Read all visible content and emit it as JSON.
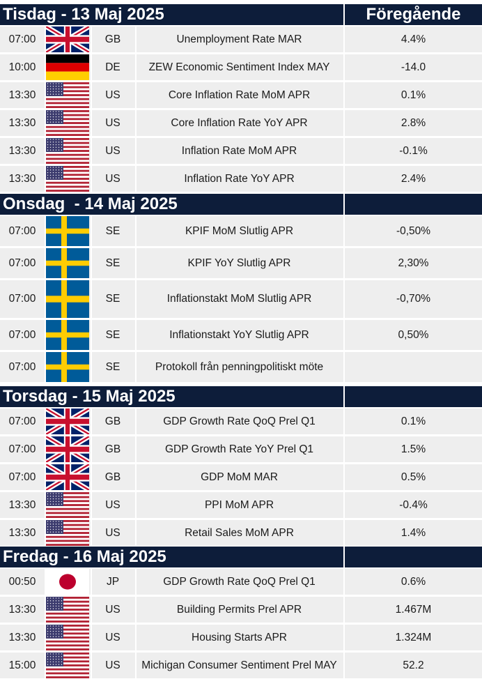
{
  "header_prev_label": "Föregående",
  "colors": {
    "header_bg": "#0d1d3a",
    "row_bg": "#eeeeee",
    "text": "#1a1a1a"
  },
  "sections": [
    {
      "title": "Tisdag - 13 Maj 2025",
      "rows": [
        {
          "time": "07:00",
          "flag": "gb-flag-icon",
          "country": "GB",
          "event": "Unemployment Rate MAR",
          "previous": "4.4%"
        },
        {
          "time": "10:00",
          "flag": "de-flag-icon",
          "country": "DE",
          "event": "ZEW Economic Sentiment Index MAY",
          "previous": "-14.0"
        },
        {
          "time": "13:30",
          "flag": "us-flag-icon",
          "country": "US",
          "event": "Core Inflation Rate MoM APR",
          "previous": "0.1%"
        },
        {
          "time": "13:30",
          "flag": "us-flag-icon",
          "country": "US",
          "event": "Core Inflation Rate YoY APR",
          "previous": "2.8%"
        },
        {
          "time": "13:30",
          "flag": "us-flag-icon",
          "country": "US",
          "event": "Inflation Rate MoM APR",
          "previous": "-0.1%"
        },
        {
          "time": "13:30",
          "flag": "us-flag-icon",
          "country": "US",
          "event": "Inflation Rate YoY APR",
          "previous": "2.4%"
        }
      ]
    },
    {
      "title": "Onsdag  - 14 Maj 2025",
      "rows": [
        {
          "time": "07:00",
          "flag": "se-flag-icon",
          "country": "SE",
          "event": "KPIF MoM Slutlig APR",
          "previous": "-0,50%"
        },
        {
          "time": "07:00",
          "flag": "se-flag-icon",
          "country": "SE",
          "event": "KPIF YoY Slutlig APR",
          "previous": "2,30%"
        },
        {
          "time": "07:00",
          "flag": "se-flag-icon",
          "country": "SE",
          "event": "Inflationstakt MoM Slutlig APR",
          "previous": "-0,70%"
        },
        {
          "time": "07:00",
          "flag": "se-flag-icon",
          "country": "SE",
          "event": "Inflationstakt YoY Slutlig APR",
          "previous": "0,50%"
        },
        {
          "time": "07:00",
          "flag": "se-flag-icon",
          "country": "SE",
          "event": "Protokoll från penningpolitiskt möte",
          "previous": ""
        }
      ]
    },
    {
      "title": "Torsdag - 15 Maj 2025",
      "rows": [
        {
          "time": "07:00",
          "flag": "gb-flag-icon",
          "country": "GB",
          "event": "GDP Growth Rate QoQ Prel Q1",
          "previous": "0.1%"
        },
        {
          "time": "07:00",
          "flag": "gb-flag-icon",
          "country": "GB",
          "event": "GDP Growth Rate YoY Prel Q1",
          "previous": "1.5%"
        },
        {
          "time": "07:00",
          "flag": "gb-flag-icon",
          "country": "GB",
          "event": "GDP MoM MAR",
          "previous": "0.5%"
        },
        {
          "time": "13:30",
          "flag": "us-flag-icon",
          "country": "US",
          "event": "PPI MoM APR",
          "previous": "-0.4%"
        },
        {
          "time": "13:30",
          "flag": "us-flag-icon",
          "country": "US",
          "event": "Retail Sales MoM APR",
          "previous": "1.4%"
        }
      ]
    },
    {
      "title": "Fredag - 16 Maj 2025",
      "rows": [
        {
          "time": "00:50",
          "flag": "jp-flag-icon",
          "country": "JP",
          "event": "GDP Growth Rate QoQ Prel Q1",
          "previous": "0.6%"
        },
        {
          "time": "13:30",
          "flag": "us-flag-icon",
          "country": "US",
          "event": "Building Permits Prel APR",
          "previous": "1.467M"
        },
        {
          "time": "13:30",
          "flag": "us-flag-icon",
          "country": "US",
          "event": "Housing Starts APR",
          "previous": "1.324M"
        },
        {
          "time": "15:00",
          "flag": "us-flag-icon",
          "country": "US",
          "event": "Michigan Consumer Sentiment Prel MAY",
          "previous": "52.2"
        }
      ]
    }
  ]
}
